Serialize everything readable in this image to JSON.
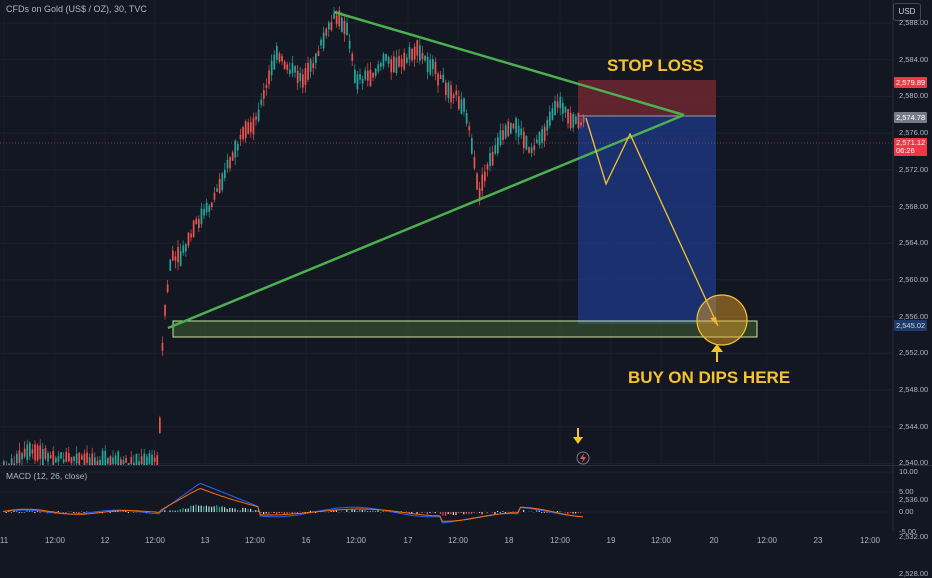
{
  "header": {
    "title": "CFDs on Gold (US$ / OZ), 30, TVC",
    "currency_button": "USD"
  },
  "price_axis": {
    "labels": [
      "2,588.00",
      "2,584.00",
      "2,580.00",
      "2,576.00",
      "2,572.00",
      "2,568.00",
      "2,564.00",
      "2,560.00",
      "2,556.00",
      "2,552.00",
      "2,548.00",
      "2,544.00",
      "2,540.00",
      "2,536.00",
      "2,532.00",
      "2,528.00"
    ],
    "tag_stop": "2,579.89",
    "tag_entry": "2,574.78",
    "tag_current_price": "2,571.12",
    "tag_countdown": "06:26",
    "tag_target": "2,545.02"
  },
  "time_axis": {
    "labels": [
      "11",
      "12:00",
      "12",
      "12:00",
      "13",
      "12:00",
      "16",
      "12:00",
      "17",
      "12:00",
      "18",
      "12:00",
      "19",
      "12:00",
      "20",
      "12:00",
      "23",
      "12:00"
    ]
  },
  "macd": {
    "title": "MACD (12, 26, close)",
    "axis_labels": [
      "10.00",
      "5.00",
      "0.00",
      "-5.00"
    ]
  },
  "annotations": {
    "stop_loss": "STOP LOSS",
    "buy_text": "BUY ON DIPS HERE"
  },
  "icons": {
    "down_arrow": "down-arrow-icon",
    "up_arrow": "up-arrow-icon",
    "flash": "flash-icon"
  },
  "colors": {
    "background": "#131722",
    "bull": "#26a69a",
    "bear": "#ef5350",
    "trendline": "#4caf50",
    "annotation": "#f5c330",
    "target_zone": "#1e3a8a",
    "stop_zone": "#7a2a33",
    "macd_line": "#2962ff",
    "signal_line": "#ff6d00"
  }
}
